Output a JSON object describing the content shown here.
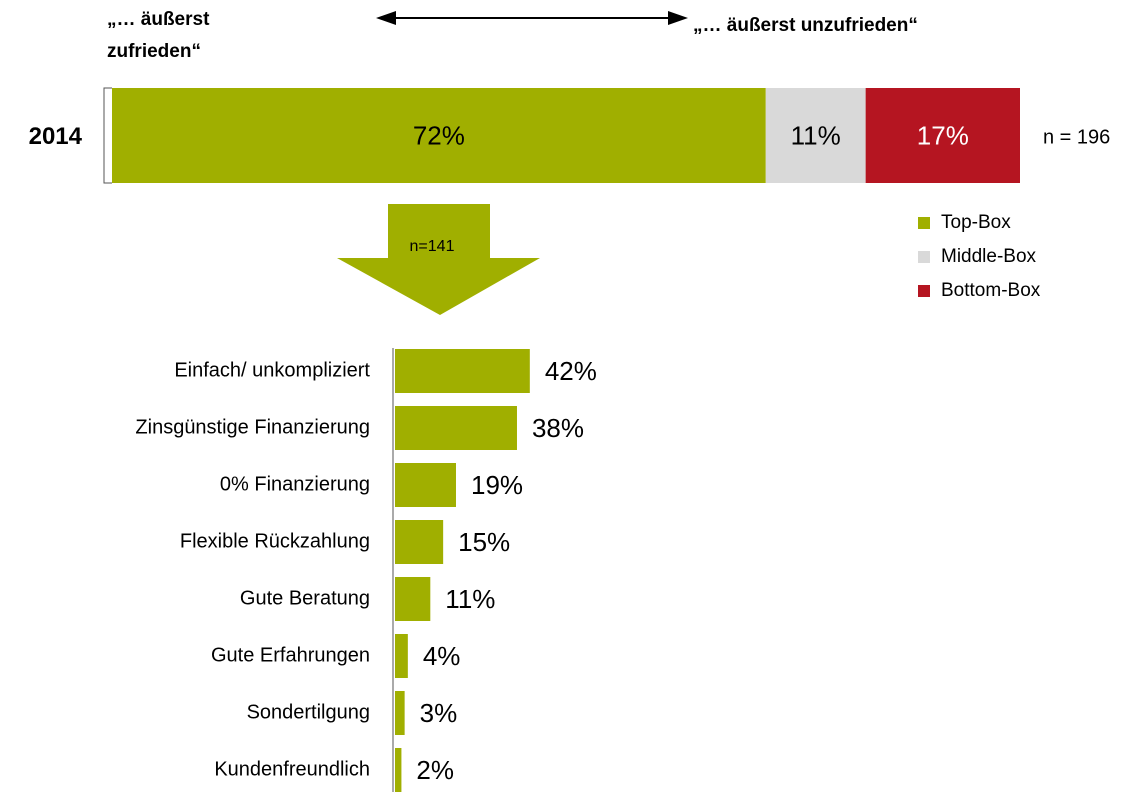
{
  "chart_data": [
    {
      "type": "stacked_bar",
      "categories": [
        "2014"
      ],
      "series": [
        {
          "name": "Top-Box",
          "color": "#a0af00",
          "values": [
            72
          ],
          "value_labels": [
            "72%"
          ]
        },
        {
          "name": "Middle-Box",
          "color": "#d9d9d9",
          "values": [
            11
          ],
          "value_labels": [
            "11%"
          ]
        },
        {
          "name": "Bottom-Box",
          "color": "#b51521",
          "values": [
            17
          ],
          "value_labels": [
            "17%"
          ]
        }
      ],
      "xlim": [
        0,
        100
      ],
      "annotations": {
        "left": [
          "„… äußerst",
          "zufrieden“"
        ],
        "right": "„… äußerst unzufrieden“",
        "n": "n = 196",
        "subset": "n=141"
      }
    },
    {
      "type": "bar",
      "categories": [
        "Einfach/ unkompliziert",
        "Zinsgünstige Finanzierung",
        "0% Finanzierung",
        "Flexible Rückzahlung",
        "Gute Beratung",
        "Gute Erfahrungen",
        "Sondertilgung",
        "Kundenfreundlich"
      ],
      "values": [
        42,
        38,
        19,
        15,
        11,
        4,
        3,
        2
      ],
      "value_labels": [
        "42%",
        "38%",
        "19%",
        "15%",
        "11%",
        "4%",
        "3%",
        "2%"
      ],
      "color": "#a0af00",
      "xlim": [
        0,
        100
      ]
    }
  ]
}
